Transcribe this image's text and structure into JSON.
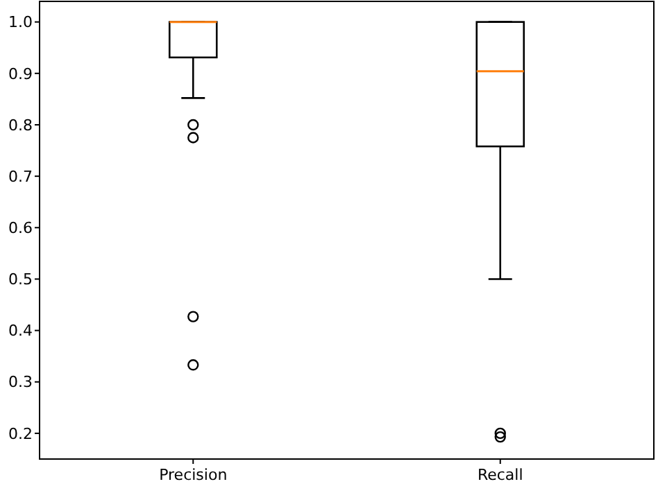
{
  "chart_data": {
    "type": "box",
    "categories": [
      "Precision",
      "Recall"
    ],
    "boxes": [
      {
        "low": 0.852,
        "q1": 0.931,
        "median": 1.0,
        "q3": 1.0,
        "high": 1.0,
        "outliers": [
          0.8,
          0.775,
          0.427,
          0.333
        ]
      },
      {
        "low": 0.5,
        "q1": 0.758,
        "median": 0.904,
        "q3": 1.0,
        "high": 1.0,
        "outliers": [
          0.2,
          0.193
        ]
      }
    ],
    "color": "#000000",
    "ylim": [
      0.15,
      1.04
    ],
    "yticks": [
      {
        "value": 0.2,
        "label": "0.2"
      },
      {
        "value": 0.3,
        "label": "0.3"
      },
      {
        "value": 0.4,
        "label": "0.4"
      },
      {
        "value": 0.5,
        "label": "0.5"
      },
      {
        "value": 0.6,
        "label": "0.6"
      },
      {
        "value": 0.7,
        "label": "0.7"
      },
      {
        "value": 0.8,
        "label": "0.8"
      },
      {
        "value": 0.9,
        "label": "0.9"
      },
      {
        "value": 1.0,
        "label": "1.0"
      }
    ],
    "grid": false
  }
}
